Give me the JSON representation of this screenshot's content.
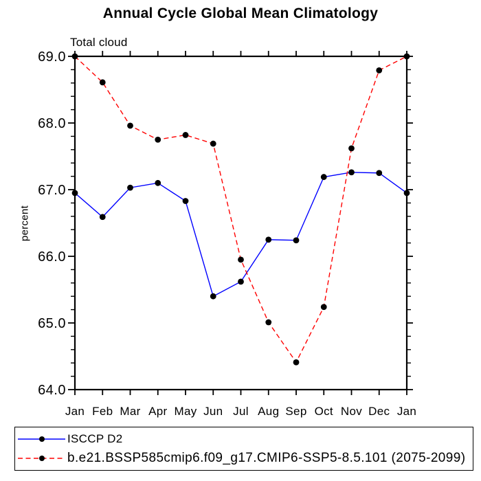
{
  "figure": {
    "title": "Annual Cycle Global Mean Climatology",
    "subtitle": "Total cloud",
    "y_axis_label": "percent"
  },
  "chart_data": {
    "type": "line",
    "title": "Annual Cycle Global Mean Climatology",
    "subtitle": "Total cloud",
    "xlabel": "",
    "ylabel": "percent",
    "categories": [
      "Jan",
      "Feb",
      "Mar",
      "Apr",
      "May",
      "Jun",
      "Jul",
      "Aug",
      "Sep",
      "Oct",
      "Nov",
      "Dec",
      "Jan"
    ],
    "series": [
      {
        "name": "ISCCP D2",
        "color": "#0000ff",
        "line_style": "solid",
        "marker": "filled-circle",
        "marker_color": "#000000",
        "values": [
          66.95,
          66.59,
          67.03,
          67.1,
          66.83,
          65.4,
          65.62,
          66.25,
          66.24,
          67.19,
          67.26,
          67.25,
          66.95
        ]
      },
      {
        "name": "b.e21.BSSP585cmip6.f09_g17.CMIP6-SSP5-8.5.101 (2075-2099)",
        "color": "#ff0000",
        "line_style": "dashed",
        "marker": "filled-circle",
        "marker_color": "#000000",
        "values": [
          69.0,
          68.61,
          67.96,
          67.75,
          67.82,
          67.69,
          65.95,
          65.01,
          64.41,
          65.24,
          67.62,
          68.79,
          69.0
        ]
      }
    ],
    "ylim": [
      64.0,
      69.0
    ],
    "y_ticks": [
      69.0,
      68.0,
      67.0,
      66.0,
      65.0,
      64.0
    ],
    "y_tick_labels": [
      "69.0",
      "68.0",
      "67.0",
      "66.0",
      "65.0",
      "64.0"
    ],
    "y_minor_tick_step": 0.2,
    "grid": false,
    "tick_direction": "out",
    "legend_position": "bottom-left-box"
  }
}
